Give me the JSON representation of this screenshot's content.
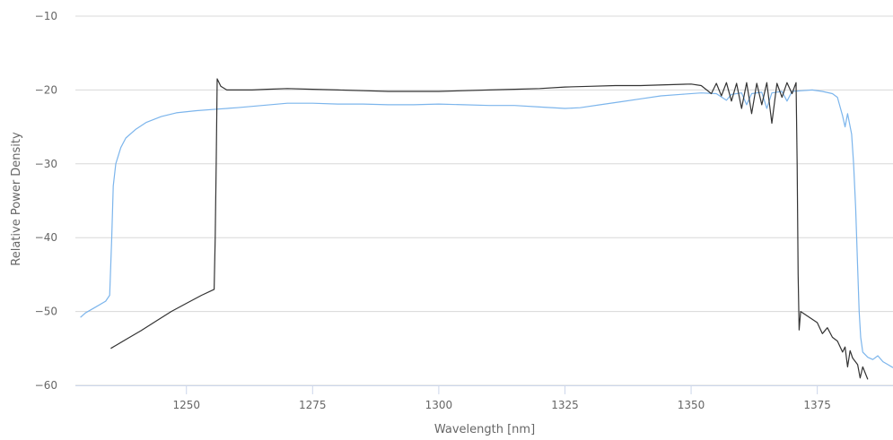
{
  "chart_data": {
    "type": "line",
    "xlabel": "Wavelength [nm]",
    "ylabel": "Relative Power Density",
    "xlim": [
      1228,
      1390
    ],
    "ylim": [
      -60,
      -10
    ],
    "x_ticks": [
      1250,
      1275,
      1300,
      1325,
      1350,
      1375
    ],
    "y_ticks": [
      -10,
      -20,
      -30,
      -40,
      -50,
      -60
    ],
    "grid": "horizontal",
    "legend": "none",
    "series": [
      {
        "color": "#7cb5ec",
        "points": [
          [
            1229,
            -50.8
          ],
          [
            1230,
            -50.2
          ],
          [
            1232,
            -49.4
          ],
          [
            1234,
            -48.6
          ],
          [
            1234.8,
            -47.8
          ],
          [
            1235.2,
            -40.0
          ],
          [
            1235.5,
            -33.0
          ],
          [
            1236,
            -30.0
          ],
          [
            1237,
            -27.8
          ],
          [
            1238,
            -26.5
          ],
          [
            1240,
            -25.3
          ],
          [
            1242,
            -24.4
          ],
          [
            1245,
            -23.6
          ],
          [
            1248,
            -23.1
          ],
          [
            1252,
            -22.8
          ],
          [
            1256,
            -22.6
          ],
          [
            1260,
            -22.4
          ],
          [
            1265,
            -22.1
          ],
          [
            1270,
            -21.8
          ],
          [
            1275,
            -21.8
          ],
          [
            1280,
            -21.9
          ],
          [
            1285,
            -21.9
          ],
          [
            1290,
            -22.0
          ],
          [
            1295,
            -22.0
          ],
          [
            1300,
            -21.9
          ],
          [
            1305,
            -22.0
          ],
          [
            1310,
            -22.1
          ],
          [
            1315,
            -22.1
          ],
          [
            1320,
            -22.3
          ],
          [
            1325,
            -22.5
          ],
          [
            1328,
            -22.4
          ],
          [
            1332,
            -22.0
          ],
          [
            1336,
            -21.6
          ],
          [
            1340,
            -21.2
          ],
          [
            1344,
            -20.8
          ],
          [
            1348,
            -20.6
          ],
          [
            1352,
            -20.4
          ],
          [
            1355,
            -20.5
          ],
          [
            1357,
            -21.4
          ],
          [
            1358,
            -20.6
          ],
          [
            1360,
            -20.4
          ],
          [
            1361,
            -22.0
          ],
          [
            1362,
            -20.5
          ],
          [
            1364,
            -20.3
          ],
          [
            1365,
            -22.5
          ],
          [
            1366,
            -20.4
          ],
          [
            1368,
            -20.2
          ],
          [
            1369,
            -21.5
          ],
          [
            1370,
            -20.2
          ],
          [
            1372,
            -20.1
          ],
          [
            1374,
            -20.0
          ],
          [
            1376,
            -20.2
          ],
          [
            1378,
            -20.5
          ],
          [
            1379,
            -21.0
          ],
          [
            1380,
            -23.5
          ],
          [
            1380.5,
            -25.0
          ],
          [
            1381,
            -23.2
          ],
          [
            1381.8,
            -26.0
          ],
          [
            1382.2,
            -30.0
          ],
          [
            1382.6,
            -36.0
          ],
          [
            1383.0,
            -44.0
          ],
          [
            1383.3,
            -50.0
          ],
          [
            1383.6,
            -53.5
          ],
          [
            1384,
            -55.5
          ],
          [
            1385,
            -56.2
          ],
          [
            1386,
            -56.5
          ],
          [
            1387,
            -56.0
          ],
          [
            1388,
            -56.8
          ],
          [
            1389,
            -57.2
          ],
          [
            1390,
            -57.6
          ]
        ]
      },
      {
        "color": "#333333",
        "points": [
          [
            1235,
            -55.0
          ],
          [
            1238,
            -53.8
          ],
          [
            1241,
            -52.6
          ],
          [
            1244,
            -51.3
          ],
          [
            1247,
            -50.0
          ],
          [
            1250,
            -48.9
          ],
          [
            1253,
            -47.8
          ],
          [
            1255.5,
            -47.0
          ],
          [
            1255.7,
            -40.0
          ],
          [
            1255.9,
            -30.0
          ],
          [
            1256.1,
            -18.5
          ],
          [
            1256.8,
            -19.5
          ],
          [
            1258,
            -20.0
          ],
          [
            1260,
            -20.0
          ],
          [
            1263,
            -20.0
          ],
          [
            1266,
            -19.9
          ],
          [
            1270,
            -19.8
          ],
          [
            1275,
            -19.9
          ],
          [
            1280,
            -20.0
          ],
          [
            1285,
            -20.1
          ],
          [
            1290,
            -20.2
          ],
          [
            1295,
            -20.2
          ],
          [
            1300,
            -20.2
          ],
          [
            1305,
            -20.1
          ],
          [
            1310,
            -20.0
          ],
          [
            1315,
            -19.9
          ],
          [
            1320,
            -19.8
          ],
          [
            1325,
            -19.6
          ],
          [
            1330,
            -19.5
          ],
          [
            1335,
            -19.4
          ],
          [
            1340,
            -19.4
          ],
          [
            1345,
            -19.3
          ],
          [
            1350,
            -19.2
          ],
          [
            1352,
            -19.4
          ],
          [
            1354,
            -20.5
          ],
          [
            1355,
            -19.1
          ],
          [
            1356,
            -20.8
          ],
          [
            1357,
            -19.0
          ],
          [
            1358,
            -21.5
          ],
          [
            1359,
            -19.1
          ],
          [
            1360,
            -22.5
          ],
          [
            1361,
            -19.0
          ],
          [
            1362,
            -23.2
          ],
          [
            1363,
            -19.1
          ],
          [
            1364,
            -22.0
          ],
          [
            1365,
            -19.0
          ],
          [
            1366,
            -24.5
          ],
          [
            1367,
            -19.1
          ],
          [
            1368,
            -21.0
          ],
          [
            1369,
            -19.0
          ],
          [
            1370,
            -20.5
          ],
          [
            1370.8,
            -19.0
          ],
          [
            1371.0,
            -30.0
          ],
          [
            1371.2,
            -45.0
          ],
          [
            1371.4,
            -52.5
          ],
          [
            1371.7,
            -50.0
          ],
          [
            1373,
            -50.6
          ],
          [
            1375,
            -51.5
          ],
          [
            1376,
            -53.0
          ],
          [
            1377,
            -52.2
          ],
          [
            1378,
            -53.5
          ],
          [
            1379,
            -54.0
          ],
          [
            1380,
            -55.5
          ],
          [
            1380.5,
            -54.8
          ],
          [
            1381,
            -57.5
          ],
          [
            1381.5,
            -55.3
          ],
          [
            1382,
            -56.3
          ],
          [
            1383,
            -57.2
          ],
          [
            1383.5,
            -59.0
          ],
          [
            1384,
            -57.5
          ],
          [
            1385,
            -59.2
          ]
        ]
      }
    ]
  }
}
